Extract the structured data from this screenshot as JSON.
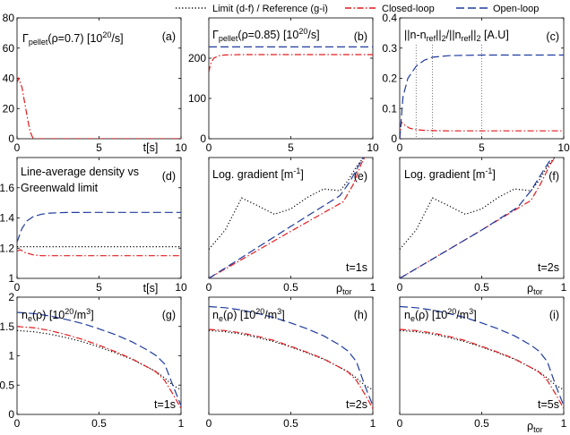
{
  "legend": {
    "items": [
      {
        "label": "Limit (d-f) / Reference (g-i)",
        "color": "#000000",
        "dash": "1.2,2.4"
      },
      {
        "label": "Closed-loop",
        "color": "#e31a1c",
        "dash": "7,2.5,1.5,2.5"
      },
      {
        "label": "Open-loop",
        "color": "#1f3b9e",
        "dash": "9,4"
      }
    ]
  },
  "chart_data": [
    {
      "id": "a",
      "type": "line",
      "panel_label": "(a)",
      "title": {
        "base": "Γ",
        "sub": "pellet",
        "rest": "(ρ=0.7) [10",
        "sup": "20",
        "tail": "/s]"
      },
      "xlabel": "t[s]",
      "xlim": [
        0,
        10
      ],
      "ylim": [
        0,
        80
      ],
      "xticks": [
        0,
        5,
        10
      ],
      "yticks": [
        0,
        20,
        40,
        60,
        80
      ],
      "series": [
        {
          "name": "Closed-loop",
          "x": [
            0,
            0.1,
            0.3,
            0.5,
            0.7,
            0.8,
            0.9,
            1,
            10
          ],
          "y": [
            37,
            40,
            34,
            22,
            10,
            5,
            2,
            0,
            0
          ]
        }
      ]
    },
    {
      "id": "b",
      "type": "line",
      "panel_label": "(b)",
      "title": {
        "base": "Γ",
        "sub": "pellet",
        "rest": "(ρ=0.85) [10",
        "sup": "20",
        "tail": "/s]"
      },
      "xlabel": "",
      "xlim": [
        0,
        10
      ],
      "ylim": [
        0,
        300
      ],
      "xticks": [
        0,
        5,
        10
      ],
      "yticks": [
        0,
        100,
        200
      ],
      "series": [
        {
          "name": "Closed-loop",
          "x": [
            0,
            0.1,
            0.3,
            0.6,
            1,
            2,
            10
          ],
          "y": [
            165,
            185,
            200,
            206,
            208,
            209,
            209
          ]
        },
        {
          "name": "Open-loop",
          "x": [
            0,
            10
          ],
          "y": [
            228,
            228
          ]
        }
      ]
    },
    {
      "id": "c",
      "type": "line",
      "panel_label": "(c)",
      "title": {
        "text": "||n-n",
        "sub": "ref",
        "mid": "||",
        "sub2": "2",
        "mid2": "/||n",
        "sub3": "ref",
        "mid3": "||",
        "sub4": "2",
        "tail": " [A.U]"
      },
      "xlabel": "",
      "xlim": [
        0,
        10
      ],
      "ylim": [
        0,
        0.4
      ],
      "xticks": [
        0,
        5,
        10
      ],
      "yticks": [
        0,
        0.1,
        0.2,
        0.3,
        0.4
      ],
      "markers": [
        1,
        2,
        5
      ],
      "series": [
        {
          "name": "Closed-loop",
          "x": [
            0,
            0.1,
            0.3,
            0.6,
            1,
            1.5,
            2,
            3,
            10
          ],
          "y": [
            0,
            0.055,
            0.045,
            0.035,
            0.03,
            0.028,
            0.027,
            0.026,
            0.026
          ]
        },
        {
          "name": "Open-loop",
          "x": [
            0,
            0.2,
            0.5,
            1,
            1.5,
            2,
            3,
            4,
            5,
            10
          ],
          "y": [
            0,
            0.14,
            0.2,
            0.24,
            0.26,
            0.27,
            0.275,
            0.276,
            0.277,
            0.277
          ]
        }
      ]
    },
    {
      "id": "d",
      "type": "line",
      "panel_label": "(d)",
      "title": {
        "line1": "Line-average density vs",
        "line2": "Greenwald limit"
      },
      "xlabel": "t[s]",
      "xlim": [
        0,
        10
      ],
      "ylim": [
        1,
        1.8
      ],
      "xticks": [
        0,
        5,
        10
      ],
      "yticks": [
        1,
        1.2,
        1.4,
        1.6
      ],
      "series": [
        {
          "name": "Limit",
          "x": [
            0,
            10
          ],
          "y": [
            1.21,
            1.21
          ]
        },
        {
          "name": "Closed-loop",
          "x": [
            0,
            0.2,
            0.5,
            1,
            1.5,
            2,
            10
          ],
          "y": [
            1.18,
            1.19,
            1.17,
            1.155,
            1.15,
            1.15,
            1.15
          ]
        },
        {
          "name": "Open-loop",
          "x": [
            0,
            0.3,
            0.6,
            1,
            1.5,
            2,
            3,
            5,
            10
          ],
          "y": [
            1.24,
            1.33,
            1.38,
            1.41,
            1.425,
            1.432,
            1.436,
            1.437,
            1.437
          ]
        }
      ]
    },
    {
      "id": "e",
      "type": "line",
      "panel_label": "(e)",
      "annotation": "t=1s",
      "title": {
        "text": "Log. gradient [m",
        "sup": "-1",
        "tail": "]"
      },
      "xlabel": "ρ",
      "xlabel_sub": "tor",
      "xlim": [
        0,
        1
      ],
      "ylim": [
        0,
        2
      ],
      "xticks": [
        0,
        0.5,
        1
      ],
      "yticks": [],
      "series": [
        {
          "name": "Limit",
          "x": [
            0,
            0.1,
            0.2,
            0.3,
            0.4,
            0.5,
            0.6,
            0.7,
            0.8,
            0.85,
            0.9,
            0.95
          ],
          "y": [
            0.48,
            0.8,
            1.33,
            1.2,
            1.06,
            1.15,
            1.34,
            1.48,
            1.45,
            1.62,
            1.85,
            2.02
          ]
        },
        {
          "name": "Closed-loop",
          "x": [
            0,
            0.5,
            0.82,
            0.88,
            0.93,
            0.96
          ],
          "y": [
            0,
            0.78,
            1.27,
            1.55,
            1.9,
            2.05
          ]
        },
        {
          "name": "Open-loop",
          "x": [
            0,
            0.5,
            0.8,
            0.86,
            0.92,
            0.95
          ],
          "y": [
            0,
            0.86,
            1.37,
            1.6,
            1.9,
            2.05
          ]
        }
      ]
    },
    {
      "id": "f",
      "type": "line",
      "panel_label": "(f)",
      "annotation": "t=2s",
      "title": {
        "text": "Log. gradient [m",
        "sup": "-1",
        "tail": "]"
      },
      "xlabel": "ρ",
      "xlabel_sub": "tor",
      "xlim": [
        0,
        1
      ],
      "ylim": [
        0,
        2
      ],
      "xticks": [
        0,
        0.5,
        1
      ],
      "yticks": [],
      "series": [
        {
          "name": "Limit",
          "x": [
            0,
            0.1,
            0.2,
            0.3,
            0.4,
            0.5,
            0.6,
            0.7,
            0.8,
            0.85,
            0.9,
            0.95
          ],
          "y": [
            0.48,
            0.8,
            1.33,
            1.2,
            1.06,
            1.15,
            1.34,
            1.48,
            1.45,
            1.62,
            1.85,
            2.02
          ]
        },
        {
          "name": "Closed-loop",
          "x": [
            0,
            0.5,
            0.8,
            0.86,
            0.92,
            0.96
          ],
          "y": [
            0,
            0.8,
            1.29,
            1.57,
            1.9,
            2.05
          ]
        },
        {
          "name": "Open-loop",
          "x": [
            0,
            0.5,
            0.72,
            0.8,
            0.88,
            0.94
          ],
          "y": [
            0,
            0.8,
            1.18,
            1.45,
            1.8,
            2.05
          ]
        }
      ]
    },
    {
      "id": "g",
      "type": "line",
      "panel_label": "(g)",
      "annotation": "t=1s",
      "title": {
        "text": "n",
        "sub": "e",
        "mid": "(ρ) [10",
        "sup": "20",
        "mid2": "/m",
        "sup2": "3",
        "tail": "]"
      },
      "xlabel": "",
      "xlim": [
        0,
        1
      ],
      "ylim": [
        0,
        2
      ],
      "xticks": [
        0,
        0.5,
        1
      ],
      "yticks": [
        0,
        0.5,
        1,
        1.5,
        2
      ],
      "series": [
        {
          "name": "Reference",
          "x": [
            0,
            0.1,
            0.2,
            0.3,
            0.4,
            0.5,
            0.6,
            0.7,
            0.8,
            0.85,
            0.9,
            0.95,
            1
          ],
          "y": [
            1.43,
            1.41,
            1.37,
            1.31,
            1.24,
            1.15,
            1.05,
            0.94,
            0.8,
            0.73,
            0.62,
            0.5,
            0.42
          ]
        },
        {
          "name": "Closed-loop",
          "x": [
            0,
            0.1,
            0.2,
            0.3,
            0.4,
            0.5,
            0.6,
            0.7,
            0.8,
            0.85,
            0.9,
            0.95,
            1
          ],
          "y": [
            1.5,
            1.48,
            1.43,
            1.36,
            1.28,
            1.18,
            1.07,
            0.95,
            0.8,
            0.72,
            0.58,
            0.35,
            0.1
          ]
        },
        {
          "name": "Open-loop",
          "x": [
            0,
            0.1,
            0.2,
            0.3,
            0.4,
            0.5,
            0.6,
            0.7,
            0.8,
            0.85,
            0.9,
            0.95,
            1
          ],
          "y": [
            1.74,
            1.72,
            1.68,
            1.62,
            1.55,
            1.46,
            1.36,
            1.24,
            1.09,
            1.0,
            0.86,
            0.5,
            0.15
          ]
        }
      ]
    },
    {
      "id": "h",
      "type": "line",
      "panel_label": "(h)",
      "annotation": "t=2s",
      "title": {
        "text": "n",
        "sub": "e",
        "mid": "(ρ) [10",
        "sup": "20",
        "mid2": "/m",
        "sup2": "3",
        "tail": "]"
      },
      "xlabel": "",
      "xlim": [
        0,
        1
      ],
      "ylim": [
        0,
        2
      ],
      "xticks": [
        0,
        0.5,
        1
      ],
      "yticks": [],
      "series": [
        {
          "name": "Reference",
          "x": [
            0,
            0.1,
            0.2,
            0.3,
            0.4,
            0.5,
            0.6,
            0.7,
            0.8,
            0.85,
            0.9,
            0.95,
            1
          ],
          "y": [
            1.43,
            1.41,
            1.37,
            1.31,
            1.24,
            1.15,
            1.05,
            0.94,
            0.8,
            0.73,
            0.62,
            0.5,
            0.42
          ]
        },
        {
          "name": "Closed-loop",
          "x": [
            0,
            0.1,
            0.2,
            0.3,
            0.4,
            0.5,
            0.6,
            0.7,
            0.8,
            0.85,
            0.9,
            0.95,
            1
          ],
          "y": [
            1.45,
            1.43,
            1.39,
            1.33,
            1.26,
            1.16,
            1.06,
            0.95,
            0.8,
            0.72,
            0.58,
            0.35,
            0.1
          ]
        },
        {
          "name": "Open-loop",
          "x": [
            0,
            0.1,
            0.2,
            0.3,
            0.4,
            0.5,
            0.6,
            0.7,
            0.8,
            0.85,
            0.9,
            0.95,
            1
          ],
          "y": [
            1.84,
            1.82,
            1.78,
            1.72,
            1.65,
            1.56,
            1.46,
            1.34,
            1.18,
            1.08,
            0.9,
            0.5,
            0.15
          ]
        }
      ]
    },
    {
      "id": "i",
      "type": "line",
      "panel_label": "(i)",
      "annotation": "t=5s",
      "title": {
        "text": "n",
        "sub": "e",
        "mid": "(ρ) [10",
        "sup": "20",
        "mid2": "/m",
        "sup2": "3",
        "tail": "]"
      },
      "xlabel": "ρ",
      "xlabel_sub": "tor",
      "xlim": [
        0,
        1
      ],
      "ylim": [
        0,
        2
      ],
      "xticks": [
        0,
        0.5,
        1
      ],
      "yticks": [],
      "series": [
        {
          "name": "Reference",
          "x": [
            0,
            0.1,
            0.2,
            0.3,
            0.4,
            0.5,
            0.6,
            0.7,
            0.8,
            0.85,
            0.9,
            0.95,
            1
          ],
          "y": [
            1.43,
            1.41,
            1.37,
            1.31,
            1.24,
            1.15,
            1.05,
            0.94,
            0.8,
            0.73,
            0.62,
            0.5,
            0.42
          ]
        },
        {
          "name": "Closed-loop",
          "x": [
            0,
            0.1,
            0.2,
            0.3,
            0.4,
            0.5,
            0.6,
            0.7,
            0.8,
            0.85,
            0.9,
            0.95,
            1
          ],
          "y": [
            1.45,
            1.43,
            1.39,
            1.33,
            1.26,
            1.16,
            1.06,
            0.95,
            0.8,
            0.72,
            0.58,
            0.35,
            0.1
          ]
        },
        {
          "name": "Open-loop",
          "x": [
            0,
            0.1,
            0.2,
            0.3,
            0.4,
            0.5,
            0.6,
            0.7,
            0.8,
            0.85,
            0.9,
            0.95,
            1
          ],
          "y": [
            1.84,
            1.82,
            1.78,
            1.72,
            1.65,
            1.56,
            1.46,
            1.34,
            1.18,
            1.08,
            0.9,
            0.5,
            0.15
          ]
        }
      ]
    }
  ]
}
